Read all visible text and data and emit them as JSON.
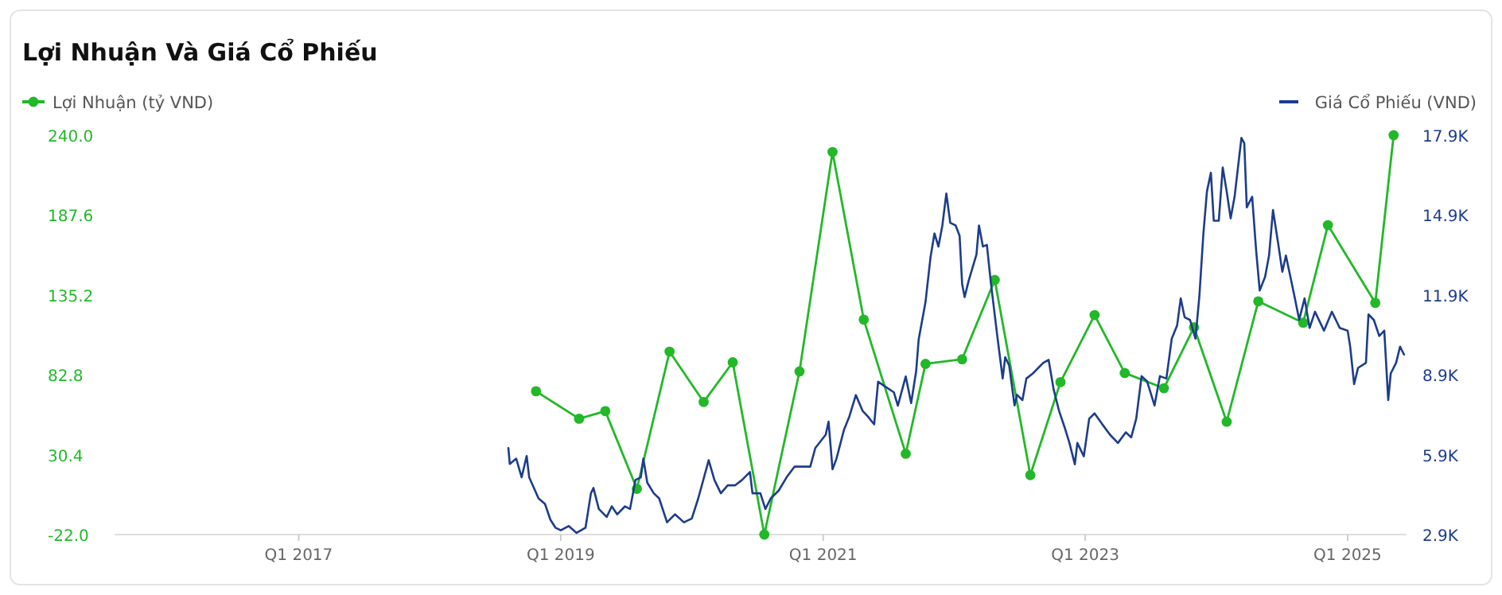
{
  "chart_data": {
    "type": "line",
    "title": "Lợi Nhuận Và Giá Cổ Phiếu",
    "legend": "top",
    "grid": false,
    "xlim": [
      "2015-08-07",
      "2025-06-14"
    ],
    "xticks": [
      {
        "value": "2017-01-01",
        "label": "Q1 2017"
      },
      {
        "value": "2019-01-01",
        "label": "Q1 2019"
      },
      {
        "value": "2021-01-01",
        "label": "Q1 2021"
      },
      {
        "value": "2023-01-01",
        "label": "Q1 2023"
      },
      {
        "value": "2025-01-01",
        "label": "Q1 2025"
      }
    ],
    "ylim": [
      -22,
      240
    ],
    "yticks": [
      {
        "value": -22,
        "label": "-22.0"
      },
      {
        "value": 30.4,
        "label": "30.4"
      },
      {
        "value": 82.8,
        "label": "82.8"
      },
      {
        "value": 135.2,
        "label": "135.2"
      },
      {
        "value": 187.6,
        "label": "187.6"
      },
      {
        "value": 240,
        "label": "240.0"
      }
    ],
    "y2lim": [
      2900,
      17900
    ],
    "y2ticks": [
      {
        "value": 2900,
        "label": "2.9K"
      },
      {
        "value": 5900,
        "label": "5.9K"
      },
      {
        "value": 8900,
        "label": "8.9K"
      },
      {
        "value": 11900,
        "label": "11.9K"
      },
      {
        "value": 14900,
        "label": "14.9K"
      },
      {
        "value": 17900,
        "label": "17.9K"
      }
    ],
    "series": [
      {
        "name": "Lợi Nhuận (tỷ VND)",
        "color": "#22b828",
        "marker": "circle",
        "x": [
          "2018-10-24",
          "2019-02-21",
          "2019-05-05",
          "2019-08-01",
          "2019-10-31",
          "2020-02-03",
          "2020-04-24",
          "2020-07-21",
          "2020-10-27",
          "2021-01-27",
          "2021-04-24",
          "2021-08-19",
          "2021-10-13",
          "2022-01-23",
          "2022-04-24",
          "2022-08-01",
          "2022-10-24",
          "2023-01-27",
          "2023-04-21",
          "2023-08-08",
          "2023-10-31",
          "2024-01-30",
          "2024-04-27",
          "2024-08-30",
          "2024-11-07",
          "2025-03-19",
          "2025-05-09"
        ],
        "values": [
          72,
          54,
          59,
          8,
          98,
          65,
          91,
          -22,
          85,
          229,
          119,
          31,
          90,
          93,
          145,
          17,
          78,
          122,
          84,
          74,
          114,
          52,
          131,
          117,
          181,
          130,
          240
        ]
      },
      {
        "name": "Giá Cổ Phiếu (VND)",
        "axis": "y2",
        "color": "#1c3c8c",
        "marker": "none",
        "x": [
          "2018-08-08",
          "2018-08-12",
          "2018-08-30",
          "2018-09-14",
          "2018-09-28",
          "2018-10-05",
          "2018-10-31",
          "2018-11-18",
          "2018-12-03",
          "2018-12-17",
          "2019-01-01",
          "2019-01-23",
          "2019-02-14",
          "2019-03-11",
          "2019-03-26",
          "2019-04-02",
          "2019-04-17",
          "2019-05-09",
          "2019-05-23",
          "2019-06-07",
          "2019-06-29",
          "2019-07-13",
          "2019-07-28",
          "2019-08-12",
          "2019-08-19",
          "2019-08-30",
          "2019-09-17",
          "2019-10-02",
          "2019-10-24",
          "2019-11-15",
          "2019-12-10",
          "2020-01-01",
          "2020-01-19",
          "2020-02-17",
          "2020-03-04",
          "2020-03-22",
          "2020-04-10",
          "2020-05-01",
          "2020-05-20",
          "2020-06-11",
          "2020-06-18",
          "2020-07-10",
          "2020-07-24",
          "2020-08-08",
          "2020-08-30",
          "2020-09-21",
          "2020-10-13",
          "2020-11-26",
          "2020-12-10",
          "2021-01-08",
          "2021-01-16",
          "2021-01-27",
          "2021-02-07",
          "2021-02-28",
          "2021-03-15",
          "2021-04-02",
          "2021-04-21",
          "2021-05-05",
          "2021-05-23",
          "2021-06-03",
          "2021-06-25",
          "2021-07-17",
          "2021-07-28",
          "2021-08-19",
          "2021-09-03",
          "2021-09-17",
          "2021-09-24",
          "2021-10-13",
          "2021-10-27",
          "2021-11-07",
          "2021-11-18",
          "2021-11-29",
          "2021-12-10",
          "2021-12-21",
          "2022-01-05",
          "2022-01-16",
          "2022-01-23",
          "2022-01-30",
          "2022-02-10",
          "2022-03-04",
          "2022-03-11",
          "2022-03-22",
          "2022-04-02",
          "2022-04-13",
          "2022-05-01",
          "2022-05-16",
          "2022-05-23",
          "2022-06-03",
          "2022-06-18",
          "2022-06-25",
          "2022-07-10",
          "2022-07-21",
          "2022-08-08",
          "2022-09-06",
          "2022-09-21",
          "2022-10-05",
          "2022-10-20",
          "2022-11-04",
          "2022-11-18",
          "2022-12-03",
          "2022-12-10",
          "2022-12-28",
          "2023-01-12",
          "2023-01-27",
          "2023-02-17",
          "2023-03-11",
          "2023-04-02",
          "2023-04-24",
          "2023-05-09",
          "2023-05-23",
          "2023-06-07",
          "2023-06-22",
          "2023-07-13",
          "2023-07-28",
          "2023-08-15",
          "2023-08-30",
          "2023-09-14",
          "2023-09-24",
          "2023-10-05",
          "2023-10-20",
          "2023-11-04",
          "2023-11-15",
          "2023-11-26",
          "2023-12-06",
          "2023-12-17",
          "2023-12-25",
          "2024-01-08",
          "2024-01-19",
          "2024-01-30",
          "2024-02-10",
          "2024-02-21",
          "2024-03-11",
          "2024-03-19",
          "2024-03-26",
          "2024-04-10",
          "2024-04-21",
          "2024-05-01",
          "2024-05-16",
          "2024-05-27",
          "2024-06-07",
          "2024-06-22",
          "2024-07-03",
          "2024-07-13",
          "2024-08-04",
          "2024-08-19",
          "2024-09-03",
          "2024-09-17",
          "2024-10-02",
          "2024-10-27",
          "2024-11-18",
          "2024-12-10",
          "2025-01-01",
          "2025-01-08",
          "2025-01-19",
          "2025-01-30",
          "2025-02-21",
          "2025-02-28",
          "2025-03-15",
          "2025-03-30",
          "2025-04-13",
          "2025-04-24",
          "2025-05-01",
          "2025-05-16",
          "2025-05-27",
          "2025-06-07"
        ],
        "values": [
          6150,
          5550,
          5750,
          5050,
          5850,
          5050,
          4260,
          4050,
          3460,
          3160,
          3060,
          3220,
          2960,
          3160,
          4450,
          4650,
          3860,
          3560,
          3960,
          3660,
          3960,
          3860,
          4950,
          5050,
          5750,
          4850,
          4450,
          4260,
          3360,
          3660,
          3360,
          3500,
          4260,
          5690,
          4950,
          4450,
          4750,
          4750,
          4950,
          5250,
          4450,
          4450,
          3860,
          4260,
          4550,
          5050,
          5450,
          5450,
          6150,
          6650,
          7140,
          5350,
          5750,
          6840,
          7340,
          8140,
          7540,
          7340,
          7040,
          8640,
          8440,
          8240,
          7740,
          8840,
          7840,
          9040,
          10230,
          11630,
          13320,
          14210,
          13720,
          14510,
          15710,
          14610,
          14510,
          14120,
          12320,
          11820,
          12420,
          13420,
          14510,
          13720,
          13780,
          12370,
          10360,
          8760,
          9560,
          9260,
          7750,
          8150,
          7950,
          8760,
          8950,
          9350,
          9460,
          8350,
          7550,
          6950,
          6340,
          5540,
          6340,
          5840,
          7250,
          7450,
          7050,
          6650,
          6340,
          6740,
          6550,
          7250,
          8850,
          8660,
          7750,
          8850,
          8760,
          10260,
          10760,
          11770,
          11060,
          10960,
          10260,
          11870,
          14180,
          15790,
          16490,
          14690,
          14690,
          16690,
          15790,
          14780,
          15590,
          17800,
          17600,
          15190,
          15590,
          13580,
          12070,
          12580,
          13380,
          15090,
          13780,
          12770,
          13380,
          11970,
          10970,
          11770,
          10660,
          11270,
          10560,
          11270,
          10660,
          10560,
          9960,
          8550,
          9160,
          9350,
          11170,
          10960,
          10360,
          10560,
          7950,
          8950,
          9350,
          9960,
          9660
        ]
      }
    ]
  }
}
